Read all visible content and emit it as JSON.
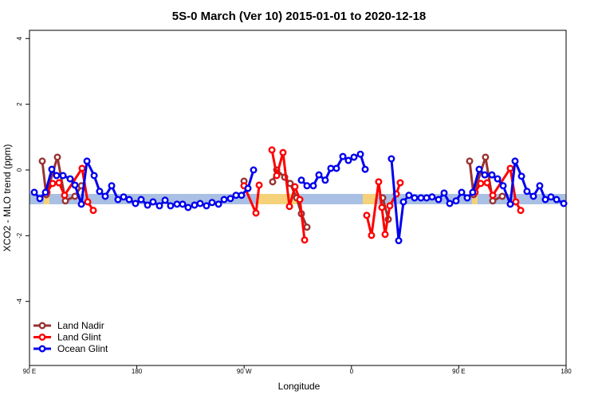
{
  "chart_data": {
    "type": "line",
    "title": "5S-0 March (Ver 10)   2015-01-01 to 2020-12-18",
    "x_label": "Longitude",
    "y_label": "XCO2 - MLO trend (ppm)",
    "xlim": [
      90,
      540
    ],
    "ylim": [
      -5.95,
      4.25
    ],
    "xticks": [
      {
        "value": 90,
        "label": "90 E"
      },
      180,
      {
        "value": 270,
        "label": "90 W"
      },
      {
        "value": 360,
        "label": "0"
      },
      {
        "value": 450,
        "label": "90 E"
      },
      {
        "value": 540,
        "label": "180"
      }
    ],
    "yticks": [
      -4,
      -2,
      0,
      2,
      4
    ],
    "legend": "bottom-left",
    "series": [
      {
        "name": "Land Nadir",
        "color": "#993333",
        "x": [
          100.7,
          104.0,
          113.4,
          120.1,
          128.1,
          133.5,
          null,
          269.9,
          null,
          293.9,
          297.3,
          304.0,
          308.6,
          314.0,
          318.0,
          322.7,
          null,
          386.2,
          390.9,
          null,
          459.1,
          462.4,
          472.4,
          478.5,
          486.5
        ],
        "values": [
          0.27,
          -0.75,
          0.39,
          -0.94,
          -0.8,
          -0.48,
          null,
          -0.34,
          null,
          -0.36,
          0.0,
          -0.22,
          -0.41,
          -0.85,
          -1.33,
          -1.74,
          null,
          -0.85,
          -1.5,
          null,
          0.27,
          -0.75,
          0.39,
          -0.94,
          -0.8
        ]
      },
      {
        "name": "Land Glint",
        "color": "#ff0000",
        "x": [
          104.7,
          109.4,
          114.7,
          119.4,
          134.1,
          138.8,
          143.5,
          null,
          269.9,
          279.9,
          282.6,
          null,
          293.3,
          297.3,
          302.6,
          308.0,
          312.6,
          316.7,
          320.7,
          null,
          372.8,
          376.8,
          382.8,
          385.5,
          388.2,
          392.2,
          397.6,
          400.9,
          null,
          463.7,
          468.4,
          473.8,
          478.5,
          493.2,
          497.8,
          501.9
        ],
        "values": [
          -0.68,
          -0.41,
          -0.39,
          -0.77,
          0.05,
          -0.97,
          -1.23,
          null,
          -0.48,
          -1.31,
          -0.46,
          null,
          0.61,
          -0.17,
          0.53,
          -1.11,
          -0.51,
          -0.9,
          -2.13,
          null,
          -1.38,
          -1.99,
          -0.36,
          -1.14,
          -1.96,
          -1.09,
          -0.73,
          -0.39,
          null,
          -0.68,
          -0.41,
          -0.39,
          -0.77,
          0.05,
          -0.97,
          -1.23
        ]
      },
      {
        "name": "Ocean Glint",
        "color": "#0000ee",
        "x": [
          94.0,
          98.7,
          103.4,
          108.7,
          112.7,
          118.1,
          124.1,
          128.1,
          133.5,
          138.2,
          144.2,
          148.8,
          153.5,
          158.9,
          164.2,
          168.9,
          173.6,
          178.9,
          183.6,
          189.0,
          193.6,
          199.0,
          203.7,
          208.3,
          213.7,
          218.4,
          223.0,
          228.4,
          233.1,
          238.4,
          243.1,
          248.5,
          253.2,
          258.5,
          263.2,
          267.8,
          273.2,
          277.9,
          null,
          318.0,
          322.7,
          328.0,
          332.7,
          338.0,
          342.7,
          347.4,
          352.8,
          357.4,
          362.1,
          367.5,
          371.5,
          null,
          393.5,
          399.6,
          403.6,
          408.2,
          412.9,
          418.3,
          423.0,
          427.6,
          433.0,
          437.7,
          442.4,
          447.7,
          452.4,
          457.1,
          461.7,
          467.1,
          471.8,
          477.8,
          482.5,
          487.2,
          493.2,
          497.2,
          502.6,
          507.2,
          512.6,
          517.9,
          522.6,
          527.3,
          532.0,
          538.0
        ],
        "values": [
          -0.68,
          -0.87,
          -0.68,
          0.02,
          -0.17,
          -0.17,
          -0.27,
          -0.46,
          -1.04,
          0.27,
          -0.17,
          -0.65,
          -0.8,
          -0.48,
          -0.9,
          -0.82,
          -0.9,
          -1.02,
          -0.9,
          -1.07,
          -0.97,
          -1.09,
          -0.92,
          -1.09,
          -1.04,
          -1.04,
          -1.14,
          -1.07,
          -1.02,
          -1.09,
          -0.99,
          -1.04,
          -0.9,
          -0.87,
          -0.77,
          -0.77,
          -0.56,
          0.0,
          null,
          -0.31,
          -0.48,
          -0.48,
          -0.15,
          -0.31,
          0.05,
          0.05,
          0.41,
          0.29,
          0.39,
          0.48,
          0.02,
          null,
          0.34,
          -2.15,
          -0.97,
          -0.77,
          -0.85,
          -0.85,
          -0.85,
          -0.82,
          -0.9,
          -0.7,
          -1.02,
          -0.94,
          -0.68,
          -0.85,
          -0.68,
          0.02,
          -0.15,
          -0.15,
          -0.27,
          -0.48,
          -1.04,
          0.27,
          -0.19,
          -0.65,
          -0.8,
          -0.48,
          -0.9,
          -0.82,
          -0.9,
          -1.02
        ]
      }
    ]
  }
}
